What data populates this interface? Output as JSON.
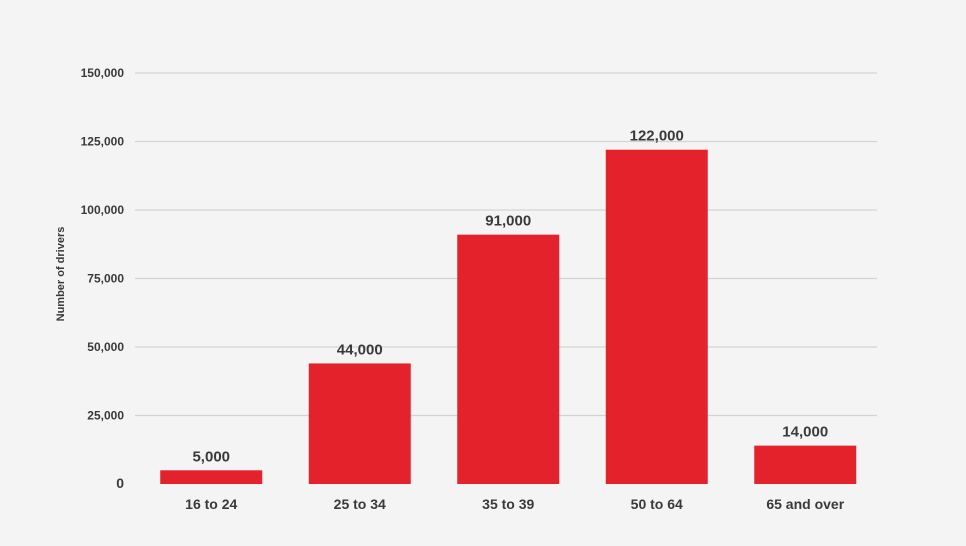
{
  "chart_data": {
    "type": "bar",
    "title": "",
    "xlabel": "",
    "ylabel": "Number of drivers",
    "categories": [
      "16 to 24",
      "25 to 34",
      "35 to 39",
      "50 to 64",
      "65 and over"
    ],
    "values": [
      5000,
      44000,
      91000,
      122000,
      14000
    ],
    "data_labels": [
      "5,000",
      "44,000",
      "91,000",
      "122,000",
      "14,000"
    ],
    "yticks": [
      0,
      25000,
      50000,
      75000,
      100000,
      125000,
      150000
    ],
    "ytick_labels": [
      "0",
      "25,000",
      "50,000",
      "75,000",
      "100,000",
      "125,000",
      "150,000"
    ],
    "ylim": [
      0,
      150000
    ],
    "grid": true,
    "legend": "none",
    "bar_color": "#e3222b",
    "background_color": "#f4f4f4"
  }
}
